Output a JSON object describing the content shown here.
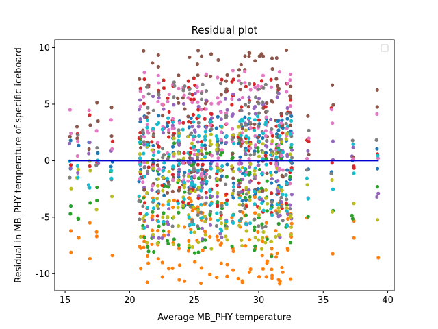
{
  "chart_data": {
    "type": "scatter",
    "title": "Residual plot",
    "xlabel": "Average MB_PHY temperature",
    "ylabel": "Residual in MB_PHY temperature of specific iceboard",
    "xlim": [
      14.2,
      40.5
    ],
    "ylim": [
      -11.5,
      10.7
    ],
    "xticks": [
      15,
      20,
      25,
      30,
      35,
      40
    ],
    "yticks": [
      -10,
      -5,
      0,
      5,
      10
    ],
    "grid": false,
    "legend": "top-right, empty",
    "zero_line": {
      "x": [
        15.3,
        39.3
      ],
      "y": 0,
      "color": "#0000cc"
    },
    "colors": [
      "#1f77b4",
      "#ff7f0e",
      "#2ca02c",
      "#d62728",
      "#9467bd",
      "#8c564b",
      "#e377c2",
      "#7f7f7f",
      "#bcbd22",
      "#17becf"
    ],
    "x_columns": [
      15.4,
      16.0,
      16.9,
      17.5,
      18.6,
      20.8,
      21.1,
      21.4,
      21.8,
      22.2,
      22.6,
      23.0,
      23.4,
      23.8,
      24.2,
      24.6,
      24.8,
      25.0,
      25.3,
      25.6,
      25.9,
      26.3,
      26.8,
      27.1,
      27.5,
      28.0,
      28.5,
      28.7,
      29.0,
      29.3,
      29.7,
      30.0,
      30.3,
      30.6,
      31.0,
      31.4,
      31.6,
      31.8,
      32.2,
      32.5,
      33.8,
      35.7,
      37.3,
      39.2
    ],
    "series_ranges": [
      {
        "color": "#1f77b4",
        "y_min": -4.0,
        "y_max": 4.0
      },
      {
        "color": "#ff7f0e",
        "y_min": -10.9,
        "y_max": -3.0
      },
      {
        "color": "#2ca02c",
        "y_min": -8.5,
        "y_max": 2.0
      },
      {
        "color": "#d62728",
        "y_min": -5.0,
        "y_max": 7.5
      },
      {
        "color": "#9467bd",
        "y_min": -7.0,
        "y_max": 6.0
      },
      {
        "color": "#8c564b",
        "y_min": -3.0,
        "y_max": 9.8
      },
      {
        "color": "#e377c2",
        "y_min": -2.5,
        "y_max": 8.0
      },
      {
        "color": "#7f7f7f",
        "y_min": -6.0,
        "y_max": 7.0
      },
      {
        "color": "#bcbd22",
        "y_min": -8.0,
        "y_max": 3.0
      },
      {
        "color": "#17becf",
        "y_min": -6.5,
        "y_max": 4.0
      }
    ]
  }
}
